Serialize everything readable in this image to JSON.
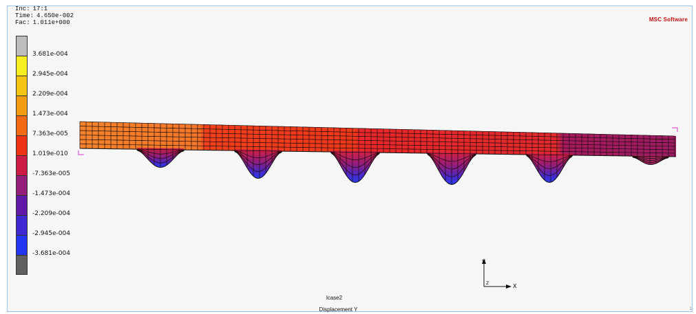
{
  "info": {
    "inc_label": "Inc:",
    "inc_value": "17:1",
    "time_label": "Time:",
    "time_value": "4.650e-002",
    "fac_label": "Fac:",
    "fac_value": "1.011e+000"
  },
  "brand": "MSC Software",
  "legend": {
    "colors": [
      "#bdbdbd",
      "#f7ef1f",
      "#f2c414",
      "#f39b12",
      "#f26a14",
      "#ee3214",
      "#cc1b45",
      "#941f7a",
      "#5f1aa8",
      "#3d29cf",
      "#2335f0",
      "#606060"
    ],
    "labels": [
      "3.681e-004",
      "2.945e-004",
      "2.209e-004",
      "1.473e-004",
      "7.363e-005",
      "1.019e-010",
      "-7.363e-005",
      "-1.473e-004",
      "-2.209e-004",
      "-2.945e-004",
      "-3.681e-004"
    ]
  },
  "axes": {
    "y_label": "Y",
    "x_label": "X"
  },
  "footer": {
    "case": "lcase2",
    "result": "Displacement Y"
  },
  "corner_mark": "1"
}
